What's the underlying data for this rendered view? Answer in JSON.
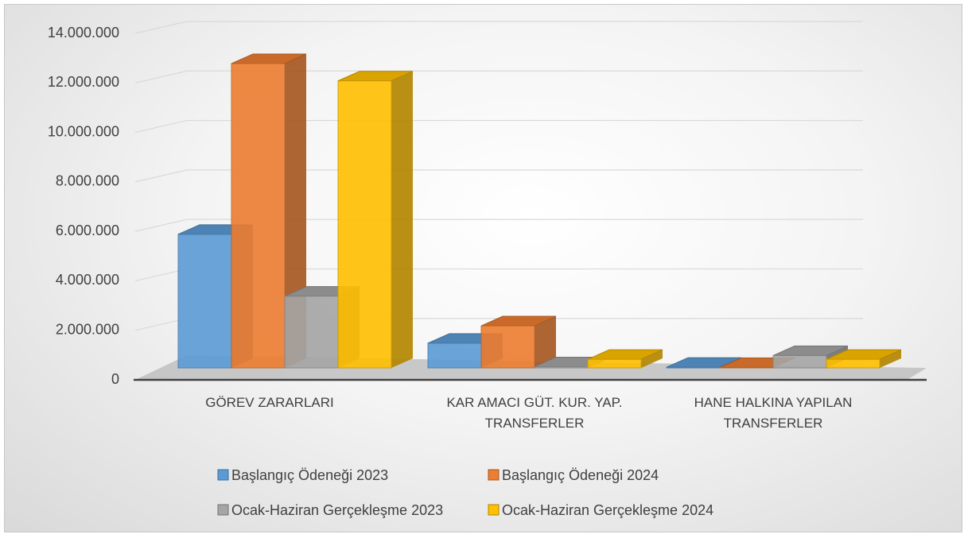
{
  "chart_data": {
    "type": "bar3d",
    "categories": [
      "GÖREV ZARARLARI",
      "KAR AMACI GÜT. KUR. YAP. TRANSFERLER",
      "HANE HALKINA YAPILAN TRANSFERLER"
    ],
    "series": [
      {
        "name": "Başlangıç Ödeneği 2023",
        "color": "#5b9bd5",
        "values": [
          5400000,
          1000000,
          30000
        ]
      },
      {
        "name": "Başlangıç Ödeneği 2024",
        "color": "#ed7d31",
        "values": [
          12300000,
          1700000,
          20000
        ]
      },
      {
        "name": "Ocak-Haziran Gerçekleşme 2023",
        "color": "#a5a5a5",
        "values": [
          2900000,
          50000,
          500000
        ]
      },
      {
        "name": "Ocak-Haziran Gerçekleşme 2024",
        "color": "#ffc000",
        "values": [
          11600000,
          350000,
          350000
        ]
      }
    ],
    "ylim": [
      0,
      14000000
    ],
    "yticks": [
      0,
      {
        "value": 2000000,
        "label": "2.000.000"
      },
      {
        "value": 4000000,
        "label": "4.000.000"
      },
      {
        "value": 6000000,
        "label": "6.000.000"
      },
      {
        "value": 8000000,
        "label": "8.000.000"
      },
      {
        "value": 10000000,
        "label": "10.000.000"
      },
      {
        "value": 12000000,
        "label": "12.000.000"
      },
      {
        "value": 14000000,
        "label": "14.000.000"
      }
    ],
    "grid": true
  }
}
